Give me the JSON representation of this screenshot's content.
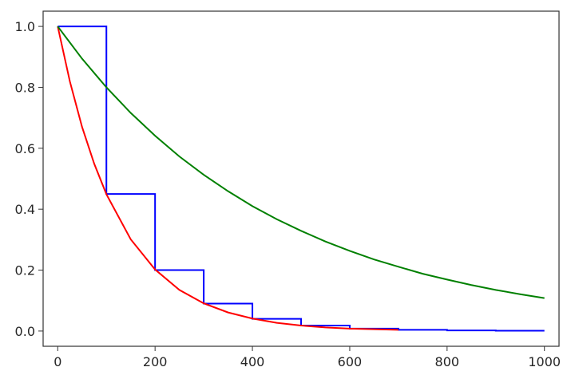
{
  "chart_data": {
    "type": "line",
    "title": "",
    "xlabel": "",
    "ylabel": "",
    "xlim": [
      -30,
      1030
    ],
    "ylim": [
      -0.05,
      1.05
    ],
    "grid": false,
    "x_ticks": [
      {
        "value": 0,
        "label": "0"
      },
      {
        "value": 200,
        "label": "200"
      },
      {
        "value": 400,
        "label": "400"
      },
      {
        "value": 600,
        "label": "600"
      },
      {
        "value": 800,
        "label": "800"
      },
      {
        "value": 1000,
        "label": "1000"
      }
    ],
    "y_ticks": [
      {
        "value": 0.0,
        "label": "0.0"
      },
      {
        "value": 0.2,
        "label": "0.2"
      },
      {
        "value": 0.4,
        "label": "0.4"
      },
      {
        "value": 0.6,
        "label": "0.6"
      },
      {
        "value": 0.8,
        "label": "0.8"
      },
      {
        "value": 1.0,
        "label": "1.0"
      }
    ],
    "series": [
      {
        "kind": "step",
        "color": "#0000ff",
        "x": [
          0,
          100,
          100,
          200,
          200,
          300,
          300,
          400,
          400,
          500,
          500,
          600,
          600,
          700,
          700,
          800,
          800,
          900,
          900,
          1000
        ],
        "y": [
          1.0,
          1.0,
          0.45,
          0.45,
          0.2,
          0.2,
          0.09,
          0.09,
          0.04,
          0.04,
          0.018,
          0.018,
          0.008,
          0.008,
          0.004,
          0.004,
          0.002,
          0.002,
          0.001,
          0.001
        ]
      },
      {
        "kind": "line",
        "color": "#ff0000",
        "x": [
          0,
          25,
          50,
          75,
          100,
          150,
          200,
          250,
          300,
          350,
          400,
          450,
          500,
          550,
          600,
          650,
          700
        ],
        "y": [
          1.0,
          0.819,
          0.67,
          0.549,
          0.449,
          0.301,
          0.202,
          0.135,
          0.091,
          0.061,
          0.041,
          0.027,
          0.018,
          0.012,
          0.008,
          0.006,
          0.004
        ]
      },
      {
        "kind": "line",
        "color": "#008000",
        "x": [
          0,
          50,
          100,
          150,
          200,
          250,
          300,
          350,
          400,
          450,
          500,
          550,
          600,
          650,
          700,
          750,
          800,
          850,
          900,
          950,
          1000
        ],
        "y": [
          1.0,
          0.894,
          0.8,
          0.716,
          0.641,
          0.573,
          0.513,
          0.459,
          0.41,
          0.367,
          0.329,
          0.294,
          0.263,
          0.235,
          0.211,
          0.188,
          0.169,
          0.151,
          0.135,
          0.121,
          0.108
        ]
      }
    ]
  }
}
